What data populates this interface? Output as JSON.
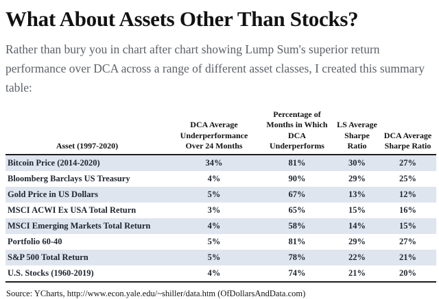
{
  "page": {
    "title": "What About Assets Other Than Stocks?",
    "intro": "Rather than bury you in chart after chart showing Lump Sum's superior return performance over DCA across a range of different asset classes, I created this summary table:",
    "source": "Source: YCharts, http://www.econ.yale.edu/~shiller/data.htm (OfDollarsAndData.com)"
  },
  "table": {
    "headers": [
      "Asset (1997-2020)",
      "DCA Average Underperformance Over 24 Months",
      "Percentage of Months in Which DCA Underperforms",
      "LS Average Sharpe Ratio",
      "DCA Average Sharpe Ratio"
    ],
    "rows": [
      {
        "asset": "Bitcoin Price (2014-2020)",
        "values": [
          "34%",
          "81%",
          "30%",
          "27%"
        ]
      },
      {
        "asset": "Bloomberg Barclays US Treasury",
        "values": [
          "4%",
          "90%",
          "29%",
          "25%"
        ]
      },
      {
        "asset": "Gold Price in US Dollars",
        "values": [
          "5%",
          "67%",
          "13%",
          "12%"
        ]
      },
      {
        "asset": "MSCI ACWI Ex USA Total Return",
        "values": [
          "3%",
          "65%",
          "15%",
          "16%"
        ]
      },
      {
        "asset": "MSCI Emerging Markets Total Return",
        "values": [
          "4%",
          "58%",
          "14%",
          "15%"
        ]
      },
      {
        "asset": "Portfolio 60-40",
        "values": [
          "5%",
          "81%",
          "29%",
          "27%"
        ]
      },
      {
        "asset": "S&P 500 Total Return",
        "values": [
          "5%",
          "78%",
          "22%",
          "21%"
        ]
      },
      {
        "asset": "U.S. Stocks (1960-2019)",
        "values": [
          "4%",
          "74%",
          "21%",
          "20%"
        ]
      }
    ]
  },
  "colors": {
    "row_shade": "#dfe5ef",
    "rule": "#1b1b1b",
    "cell_text": "#1e2530",
    "intro_text": "#5b6168"
  }
}
